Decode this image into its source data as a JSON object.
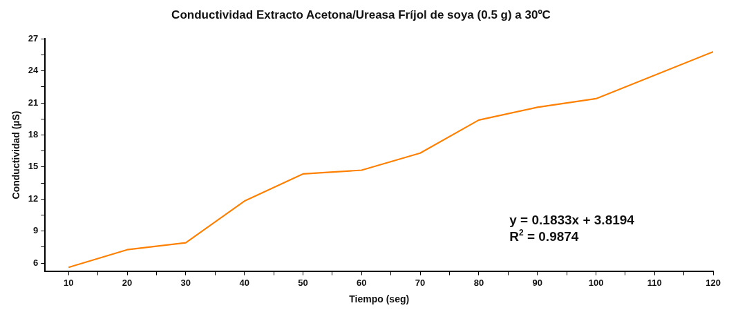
{
  "chart_data": {
    "type": "line",
    "title": "Conductividad Extracto Acetona/Ureasa Fríjol de soya (0.5 g) a 30ºC",
    "xlabel": "Tiempo (seg)",
    "ylabel": "Conductividad (µS)",
    "x": [
      10,
      20,
      30,
      40,
      50,
      60,
      70,
      80,
      90,
      100,
      120
    ],
    "series": [
      {
        "color": "#ff8000",
        "values": [
          5.6,
          7.25,
          7.9,
          11.8,
          14.35,
          14.7,
          16.3,
          19.4,
          20.6,
          21.4,
          25.8
        ]
      }
    ],
    "xlim": [
      6,
      120
    ],
    "ylim": [
      5.25,
      27
    ],
    "xticks": [
      10,
      {
        "value": 15,
        "label": null
      },
      20,
      {
        "value": 25,
        "label": null
      },
      30,
      {
        "value": 35,
        "label": null
      },
      40,
      {
        "value": 45,
        "label": null
      },
      50,
      {
        "value": 55,
        "label": null
      },
      60,
      {
        "value": 65,
        "label": null
      },
      70,
      {
        "value": 75,
        "label": null
      },
      80,
      {
        "value": 85,
        "label": null
      },
      90,
      {
        "value": 95,
        "label": null
      },
      100,
      {
        "value": 105,
        "label": null
      },
      110,
      {
        "value": 115,
        "label": null
      },
      120
    ],
    "yticks": [
      6,
      {
        "value": 7.5,
        "label": null
      },
      9,
      {
        "value": 10.5,
        "label": null
      },
      12,
      {
        "value": 13.5,
        "label": null
      },
      15,
      {
        "value": 16.5,
        "label": null
      },
      18,
      {
        "value": 19.5,
        "label": null
      },
      21,
      {
        "value": 22.5,
        "label": null
      },
      24,
      {
        "value": 25.5,
        "label": null
      },
      27
    ],
    "annotations": [
      "y = 0.1833x + 3.8194",
      "R$^{2}$ = 0.9874"
    ],
    "grid": false,
    "legend": false,
    "marker": "none",
    "line_style": "solid"
  }
}
